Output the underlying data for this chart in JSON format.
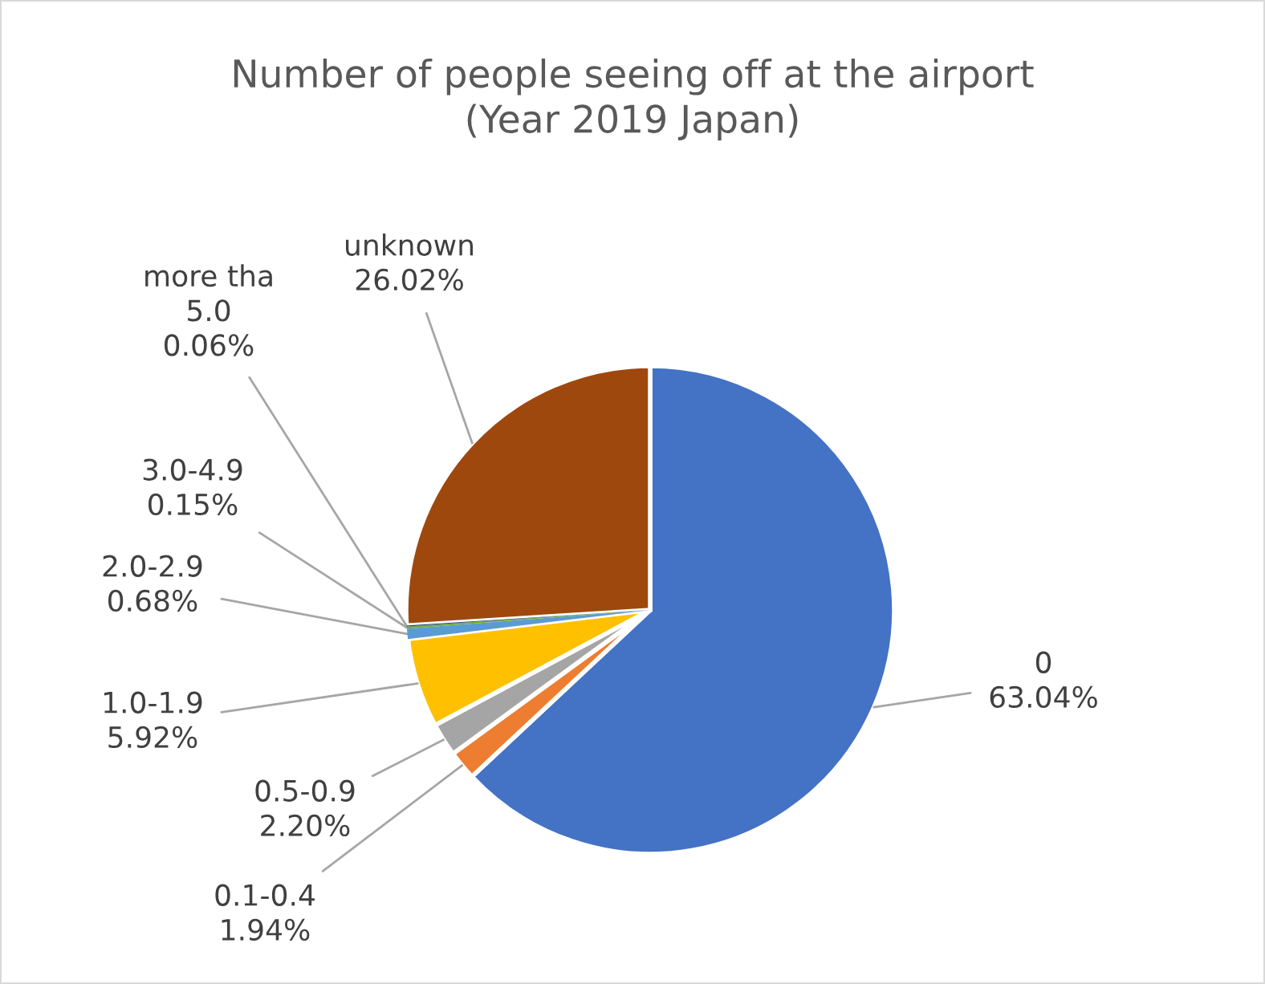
{
  "chart_data": {
    "type": "pie",
    "title": "Number of people seeing off at the airport\n(Year 2019 Japan)",
    "categories": [
      "0",
      "0.1-0.4",
      "0.5-0.9",
      "1.0-1.9",
      "2.0-2.9",
      "3.0-4.9",
      "more tha\n5.0",
      "unknown"
    ],
    "values": [
      63.04,
      1.94,
      2.2,
      5.92,
      0.68,
      0.15,
      0.06,
      26.02
    ],
    "value_labels": [
      "63.04%",
      "1.94%",
      "2.20%",
      "5.92%",
      "0.68%",
      "0.15%",
      "0.06%",
      "26.02%"
    ],
    "colors": [
      "#4472c4",
      "#ed7d31",
      "#a5a5a5",
      "#ffc000",
      "#5b9bd5",
      "#70ad47",
      "#264478",
      "#9e480e"
    ],
    "legend": false
  }
}
